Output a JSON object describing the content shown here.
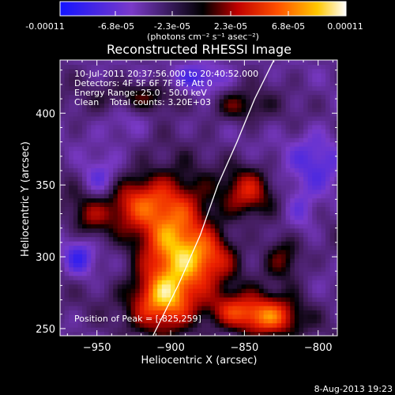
{
  "colorbar": {
    "tick_labels": [
      "-0.00011",
      "-6.8e-05",
      "-2.3e-05",
      "2.3e-05",
      "6.8e-05",
      "0.00011"
    ],
    "unit_label": "(photons cm⁻² s⁻¹ asec⁻²)",
    "vmin": -0.00011,
    "vmax": 0.00011
  },
  "footer_timestamp": "8-Aug-2013 19:23",
  "chart_data": {
    "type": "heatmap",
    "title": "Reconstructed RHESSI Image",
    "xlabel": "Heliocentric X (arcsec)",
    "ylabel": "Heliocentric Y (arcsec)",
    "xlim": [
      -975,
      -787
    ],
    "ylim": [
      245,
      437
    ],
    "x_ticks": [
      -950,
      -900,
      -850,
      -800
    ],
    "y_ticks": [
      250,
      300,
      350,
      400
    ],
    "x_tick_labels": [
      "−950",
      "−900",
      "−850",
      "−800"
    ],
    "y_tick_labels": [
      "250",
      "300",
      "350",
      "400"
    ],
    "annotations": [
      "10-Jul-2011 20:37:56.000 to 20:40:52.000",
      "Detectors: 4F 5F 6F 7F 8F, Att 0",
      "Energy Range: 25.0 - 50.0 keV",
      "Clean    Total counts: 3.20E+03"
    ],
    "peak_label": "Position of Peak = [-825,259]",
    "peak_position": [
      -825,
      259
    ],
    "colormap": "blue-black-red-yellow-white",
    "limb_curve": [
      [
        -912,
        245
      ],
      [
        -895,
        280
      ],
      [
        -880,
        315
      ],
      [
        -868,
        350
      ],
      [
        -855,
        380
      ],
      [
        -843,
        410
      ],
      [
        -830,
        437
      ]
    ],
    "sources": [
      {
        "x": -895,
        "y": 305,
        "sx": 18,
        "sy": 25,
        "a": 1.05
      },
      {
        "x": -905,
        "y": 270,
        "sx": 15,
        "sy": 14,
        "a": 0.95
      },
      {
        "x": -920,
        "y": 340,
        "sx": 25,
        "sy": 14,
        "a": 0.75
      },
      {
        "x": -835,
        "y": 258,
        "sx": 15,
        "sy": 10,
        "a": 0.95
      },
      {
        "x": -860,
        "y": 263,
        "sx": 12,
        "sy": 9,
        "a": 0.55
      },
      {
        "x": -848,
        "y": 345,
        "sx": 11,
        "sy": 12,
        "a": 0.6
      },
      {
        "x": -823,
        "y": 300,
        "sx": 10,
        "sy": 12,
        "a": 0.5
      },
      {
        "x": -870,
        "y": 300,
        "sx": 12,
        "sy": 12,
        "a": 0.4
      },
      {
        "x": -915,
        "y": 412,
        "sx": 20,
        "sy": 8,
        "a": 0.45
      },
      {
        "x": -855,
        "y": 405,
        "sx": 13,
        "sy": 8,
        "a": 0.4
      },
      {
        "x": -955,
        "y": 328,
        "sx": 9,
        "sy": 13,
        "a": 0.35
      },
      {
        "x": -880,
        "y": 425,
        "sx": 15,
        "sy": 9,
        "a": -0.55
      },
      {
        "x": -948,
        "y": 350,
        "sx": 10,
        "sy": 12,
        "a": -0.6
      },
      {
        "x": -962,
        "y": 300,
        "sx": 8,
        "sy": 10,
        "a": -0.5
      },
      {
        "x": -800,
        "y": 370,
        "sx": 14,
        "sy": 16,
        "a": -0.4
      },
      {
        "x": -930,
        "y": 395,
        "sx": 12,
        "sy": 10,
        "a": -0.3
      },
      {
        "x": -812,
        "y": 330,
        "sx": 9,
        "sy": 14,
        "a": -0.35
      }
    ]
  }
}
